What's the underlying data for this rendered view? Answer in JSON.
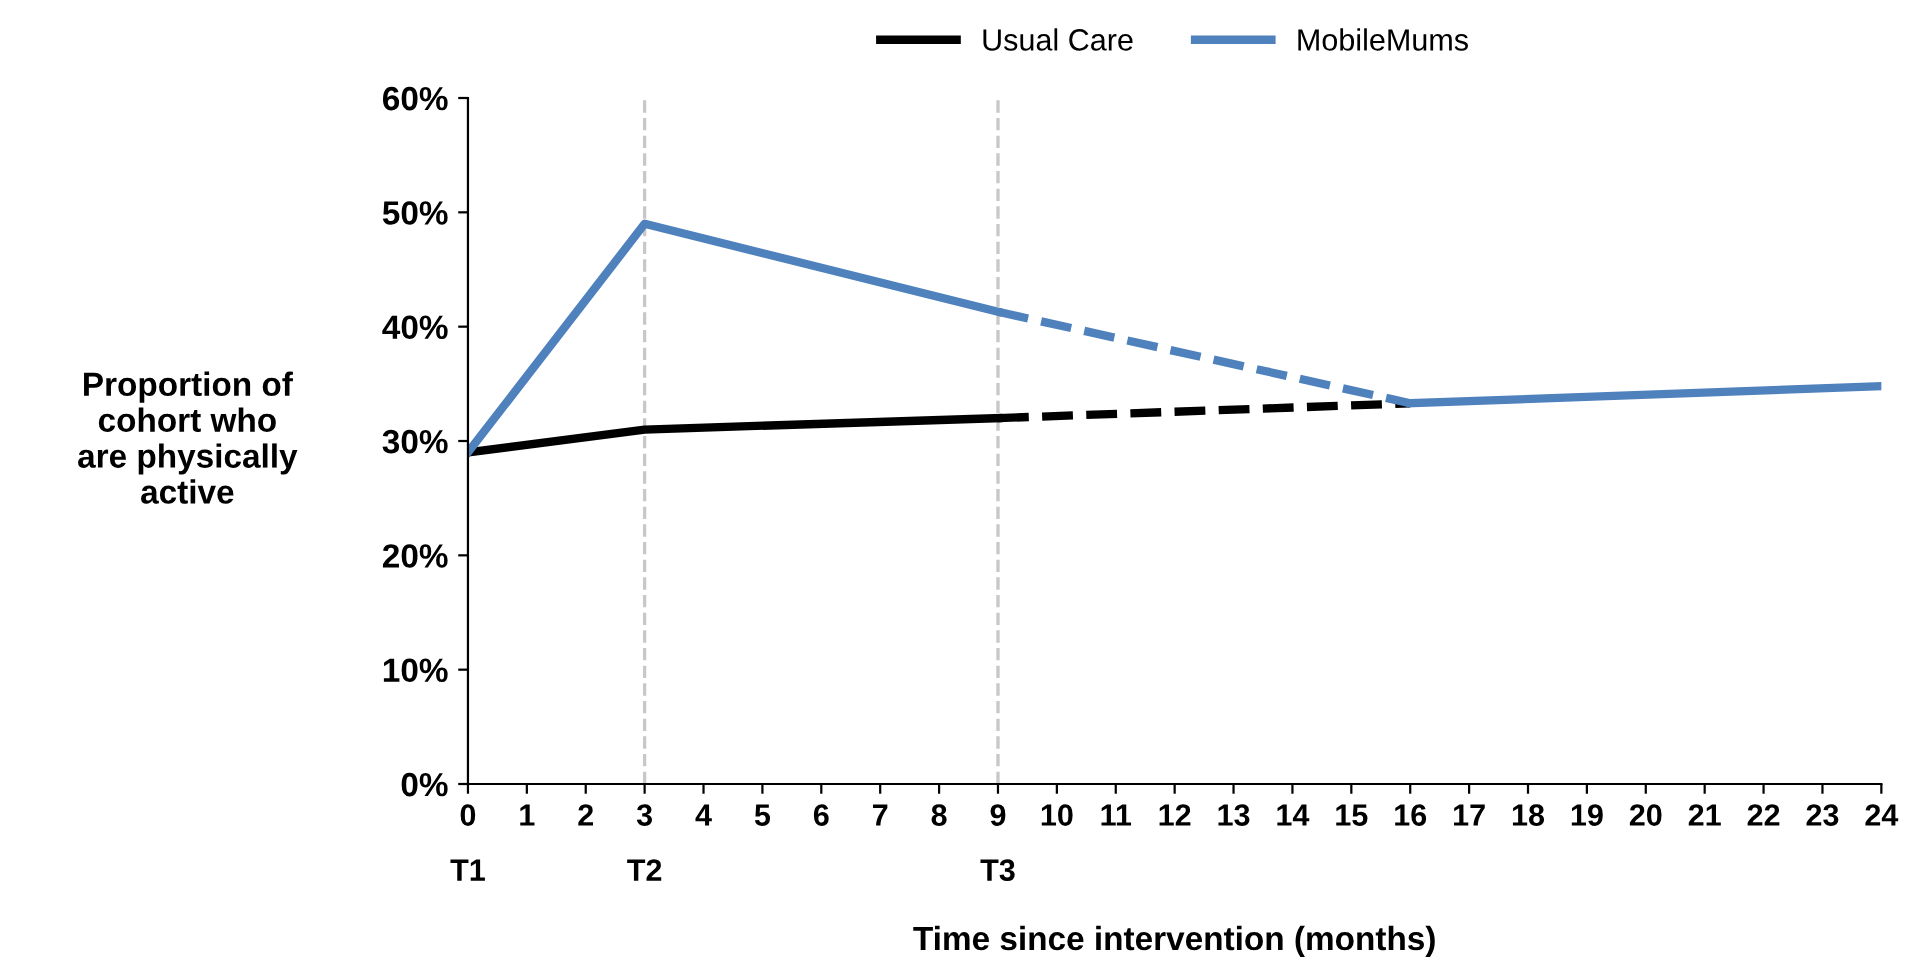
{
  "chart_data": {
    "type": "line",
    "xlabel": "Time since intervention (months)",
    "ylabel": "Proportion of\ncohort who\nare physically\nactive",
    "xlim": [
      0,
      24
    ],
    "ylim": [
      0,
      60
    ],
    "xticks": [
      {
        "value": 0,
        "label": "0\nT1"
      },
      1,
      2,
      {
        "value": 3,
        "label": "3\nT2"
      },
      4,
      5,
      6,
      7,
      8,
      {
        "value": 9,
        "label": "9\nT3"
      },
      10,
      11,
      12,
      13,
      14,
      15,
      16,
      17,
      18,
      19,
      20,
      21,
      22,
      23,
      24
    ],
    "yticks": [
      {
        "value": 0,
        "label": "0%"
      },
      {
        "value": 10,
        "label": "10%"
      },
      {
        "value": 20,
        "label": "20%"
      },
      {
        "value": 30,
        "label": "30%"
      },
      {
        "value": 40,
        "label": "40%"
      },
      {
        "value": 50,
        "label": "50%"
      },
      {
        "value": 60,
        "label": "60%"
      }
    ],
    "grid": false,
    "legend": "top",
    "marker": "none",
    "ref_lines": [
      {
        "axis": "x",
        "value": 3,
        "color": "#c8c8c8",
        "line_style": "dashed"
      },
      {
        "axis": "x",
        "value": 9,
        "color": "#c8c8c8",
        "line_style": "dashed"
      }
    ],
    "series": [
      {
        "name": "Usual Care",
        "color": "#000000",
        "x": [
          0,
          3,
          9
        ],
        "values": [
          29,
          31,
          32
        ],
        "line_style": "solid"
      },
      {
        "name": "MobileMums",
        "color": "#4f81bd",
        "x": [
          0,
          3,
          9
        ],
        "values": [
          29,
          49,
          41.3
        ],
        "line_style": "solid"
      },
      {
        "color": "#000000",
        "x": [
          9,
          16
        ],
        "values": [
          32,
          33.3
        ],
        "line_style": "dashed"
      },
      {
        "color": "#4f81bd",
        "x": [
          9,
          16
        ],
        "values": [
          41.3,
          33.3
        ],
        "line_style": "dashed"
      },
      {
        "color": "#4f81bd",
        "x": [
          16,
          24
        ],
        "values": [
          33.3,
          34.8
        ],
        "line_style": "solid"
      }
    ]
  }
}
